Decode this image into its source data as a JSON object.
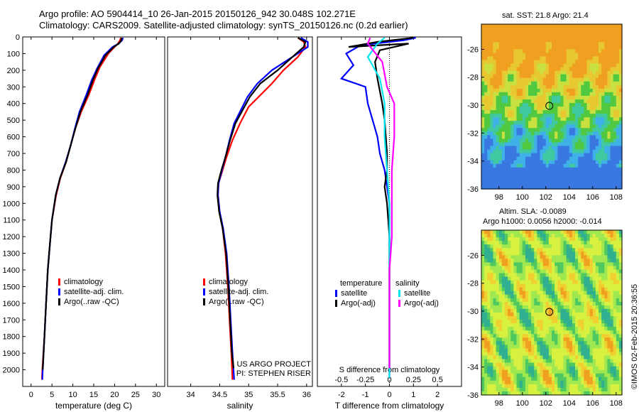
{
  "header": {
    "line1": "Argo profile: AO 5904414_10 26-Jan-2015 20150126_942 30.048S 102.271E",
    "line2": "Climatology: CARS2009. Satellite-adjusted climatology: synTS_20150126.nc (0.2d earlier)"
  },
  "map_sst": {
    "title": "sat. SST: 21.8 Argo: 21.4"
  },
  "map_sla": {
    "title1": "Altim. SLA: -0.0089",
    "title2": "Argo h1000: 0.0056 h2000: -0.014"
  },
  "credit": "©IMOS 02-Feb-2015 20:36:55",
  "colors": {
    "climatology": "#ff0000",
    "satellite": "#0000ff",
    "argo": "#000000",
    "cyan": "#00e5ee",
    "magenta": "#ff00ff"
  },
  "chart_data": [
    {
      "type": "line",
      "xlabel": "temperature (deg C)",
      "ylabel": "",
      "xlim": [
        -2,
        32
      ],
      "ylim": [
        2100,
        0
      ],
      "xticks": [
        "0",
        "5",
        "10",
        "15",
        "20",
        "25",
        "30"
      ],
      "yticks": [
        "0",
        "100",
        "200",
        "300",
        "400",
        "500",
        "600",
        "700",
        "800",
        "900",
        "1000",
        "1100",
        "1200",
        "1300",
        "1400",
        "1500",
        "1600",
        "1700",
        "1800",
        "1900",
        "2000"
      ],
      "legend": [
        "climatology",
        "satellite-adj. clim.",
        "Argo(..raw -QC)"
      ],
      "series": [
        {
          "name": "climatology",
          "color": "#ff0000",
          "points": [
            [
              21.5,
              5
            ],
            [
              21.3,
              20
            ],
            [
              20.8,
              40
            ],
            [
              20,
              60
            ],
            [
              18.5,
              100
            ],
            [
              16.5,
              180
            ],
            [
              15.3,
              250
            ],
            [
              13.8,
              350
            ],
            [
              12,
              450
            ],
            [
              10.6,
              550
            ],
            [
              9.5,
              650
            ],
            [
              8.4,
              750
            ],
            [
              7,
              850
            ],
            [
              6,
              950
            ],
            [
              5,
              1100
            ],
            [
              4.5,
              1250
            ],
            [
              4,
              1400
            ],
            [
              3.6,
              1600
            ],
            [
              3.2,
              1800
            ],
            [
              2.7,
              2000
            ],
            [
              2.6,
              2060
            ]
          ]
        },
        {
          "name": "satellite-adj. clim.",
          "color": "#0000ff",
          "points": [
            [
              22,
              5
            ],
            [
              21.8,
              20
            ],
            [
              21,
              40
            ],
            [
              19.5,
              60
            ],
            [
              17.5,
              110
            ],
            [
              15.8,
              190
            ],
            [
              14.5,
              260
            ],
            [
              13.2,
              350
            ],
            [
              11.6,
              450
            ],
            [
              10.5,
              550
            ],
            [
              9.5,
              650
            ],
            [
              8.3,
              750
            ],
            [
              6.9,
              850
            ],
            [
              5.9,
              950
            ],
            [
              5,
              1100
            ],
            [
              4.5,
              1250
            ],
            [
              4,
              1400
            ],
            [
              3.6,
              1600
            ],
            [
              3.2,
              1800
            ],
            [
              2.8,
              2000
            ],
            [
              2.7,
              2060
            ]
          ]
        },
        {
          "name": "Argo(..raw -QC)",
          "color": "#000000",
          "points": [
            [
              21.7,
              5
            ],
            [
              21.6,
              20
            ],
            [
              21,
              40
            ],
            [
              19.8,
              60
            ],
            [
              17.8,
              110
            ],
            [
              16,
              190
            ],
            [
              14.8,
              260
            ],
            [
              13.5,
              350
            ],
            [
              11.8,
              450
            ],
            [
              10.6,
              550
            ],
            [
              9.5,
              650
            ],
            [
              8.4,
              750
            ],
            [
              6.9,
              850
            ],
            [
              5.9,
              950
            ],
            [
              5,
              1100
            ],
            [
              4.5,
              1250
            ],
            [
              4,
              1400
            ],
            [
              3.6,
              1600
            ],
            [
              3.2,
              1800
            ],
            [
              2.8,
              2000
            ]
          ]
        }
      ]
    },
    {
      "type": "line",
      "xlabel": "salinity",
      "xlim": [
        33.6,
        36.1
      ],
      "ylim": [
        2100,
        0
      ],
      "xticks": [
        "34",
        "34.5",
        "35",
        "35.5",
        "36"
      ],
      "legend": [
        "climatology",
        "satellite-adj. clim.",
        "Argo(..raw -QC)"
      ],
      "annotation": [
        "US ARGO PROJECT",
        "PI: STEPHEN RISER"
      ],
      "series": [
        {
          "name": "climatology",
          "color": "#ff0000",
          "points": [
            [
              35.85,
              5
            ],
            [
              35.95,
              30
            ],
            [
              35.98,
              60
            ],
            [
              35.85,
              120
            ],
            [
              35.6,
              200
            ],
            [
              35.4,
              280
            ],
            [
              35.2,
              350
            ],
            [
              35.0,
              420
            ],
            [
              34.85,
              520
            ],
            [
              34.72,
              620
            ],
            [
              34.62,
              720
            ],
            [
              34.55,
              800
            ],
            [
              34.48,
              880
            ],
            [
              34.47,
              950
            ],
            [
              34.5,
              1050
            ],
            [
              34.55,
              1150
            ],
            [
              34.6,
              1300
            ],
            [
              34.64,
              1500
            ],
            [
              34.67,
              1700
            ],
            [
              34.7,
              1900
            ],
            [
              34.72,
              2060
            ]
          ]
        },
        {
          "name": "satellite-adj. clim.",
          "color": "#0000ff",
          "points": [
            [
              35.9,
              5
            ],
            [
              36.02,
              30
            ],
            [
              36.02,
              60
            ],
            [
              35.8,
              110
            ],
            [
              35.4,
              200
            ],
            [
              35.15,
              280
            ],
            [
              34.98,
              360
            ],
            [
              34.85,
              450
            ],
            [
              34.75,
              520
            ],
            [
              34.67,
              620
            ],
            [
              34.6,
              720
            ],
            [
              34.54,
              800
            ],
            [
              34.48,
              880
            ],
            [
              34.47,
              950
            ],
            [
              34.5,
              1050
            ],
            [
              34.56,
              1150
            ],
            [
              34.62,
              1300
            ],
            [
              34.66,
              1500
            ],
            [
              34.69,
              1700
            ],
            [
              34.72,
              1900
            ],
            [
              34.75,
              2060
            ]
          ]
        },
        {
          "name": "Argo(..raw -QC)",
          "color": "#000000",
          "points": [
            [
              35.85,
              5
            ],
            [
              35.98,
              30
            ],
            [
              35.95,
              60
            ],
            [
              35.82,
              100
            ],
            [
              35.5,
              200
            ],
            [
              35.2,
              280
            ],
            [
              35.02,
              360
            ],
            [
              34.88,
              450
            ],
            [
              34.77,
              520
            ],
            [
              34.68,
              620
            ],
            [
              34.6,
              720
            ],
            [
              34.53,
              800
            ],
            [
              34.47,
              880
            ],
            [
              34.46,
              950
            ],
            [
              34.49,
              1050
            ],
            [
              34.55,
              1150
            ],
            [
              34.61,
              1300
            ],
            [
              34.65,
              1500
            ],
            [
              34.68,
              1700
            ],
            [
              34.71,
              1900
            ],
            [
              34.74,
              1990
            ]
          ]
        }
      ]
    },
    {
      "type": "line",
      "xlabel": "T difference from climatology",
      "top_label": "S difference from climatology",
      "xlim": [
        -3,
        3
      ],
      "ylim": [
        2100,
        0
      ],
      "xticks": [
        "-2",
        "-1",
        "0",
        "1",
        "2"
      ],
      "top_ticks": [
        "-0.5",
        "-0.25",
        "0",
        "0.25",
        "0.5"
      ],
      "legend_titles": [
        "temperature",
        "salinity"
      ],
      "legend": [
        "satellite",
        "Argo(-adj)",
        "satellite",
        "Argo(-adj)"
      ],
      "series": [
        {
          "name": "satellite",
          "color": "#0000ff",
          "points": [
            [
              1.1,
              5
            ],
            [
              0.6,
              20
            ],
            [
              -1.2,
              50
            ],
            [
              -1.8,
              100
            ],
            [
              -1.5,
              170
            ],
            [
              -2.0,
              250
            ],
            [
              -1.0,
              300
            ],
            [
              -0.9,
              400
            ],
            [
              -0.7,
              500
            ],
            [
              -0.5,
              600
            ],
            [
              -0.4,
              700
            ],
            [
              -0.2,
              800
            ],
            [
              -0.1,
              900
            ],
            [
              0,
              1000
            ],
            [
              0,
              1200
            ],
            [
              0,
              1500
            ],
            [
              0,
              1800
            ],
            [
              0,
              2050
            ]
          ]
        },
        {
          "name": "Argo(-adj)",
          "color": "#000000",
          "points": [
            [
              1.0,
              5
            ],
            [
              -0.5,
              30
            ],
            [
              -1.7,
              60
            ],
            [
              0.8,
              40
            ],
            [
              -0.4,
              80
            ],
            [
              -0.6,
              150
            ],
            [
              -0.5,
              250
            ],
            [
              -0.3,
              400
            ],
            [
              -0.2,
              500
            ],
            [
              -0.1,
              700
            ],
            [
              -0.1,
              800
            ],
            [
              -0.2,
              900
            ],
            [
              -0.1,
              1000
            ],
            [
              0,
              1200
            ],
            [
              0,
              1500
            ],
            [
              0,
              1800
            ],
            [
              0,
              1990
            ]
          ]
        },
        {
          "name": "satellite",
          "color": "#00e5ee",
          "points": [
            [
              -0.2,
              5
            ],
            [
              -0.5,
              40
            ],
            [
              -0.9,
              120
            ],
            [
              -0.4,
              250
            ],
            [
              -0.2,
              400
            ],
            [
              -0.2,
              600
            ],
            [
              -0.1,
              800
            ],
            [
              0,
              1000
            ],
            [
              0,
              1200
            ],
            [
              0,
              1500
            ],
            [
              0,
              1800
            ],
            [
              0,
              2050
            ]
          ]
        },
        {
          "name": "Argo(-adj)",
          "color": "#ff00ff",
          "points": [
            [
              -0.8,
              5
            ],
            [
              -0.9,
              40
            ],
            [
              -0.3,
              150
            ],
            [
              -0.1,
              300
            ],
            [
              0.2,
              400
            ],
            [
              0.2,
              600
            ],
            [
              0.1,
              800
            ],
            [
              0.1,
              1000
            ],
            [
              0.1,
              1200
            ],
            [
              0,
              1400
            ],
            [
              0,
              1600
            ],
            [
              0,
              1800
            ],
            [
              0,
              1990
            ]
          ]
        }
      ]
    },
    {
      "type": "heatmap",
      "title": "sat. SST: 21.8 Argo: 21.4",
      "xticks": [
        "98",
        "100",
        "102",
        "104",
        "106",
        "108"
      ],
      "yticks": [
        "-26",
        "-28",
        "-30",
        "-32",
        "-34",
        "-36"
      ],
      "xlim": [
        96.5,
        108.5
      ],
      "ylim": [
        -36,
        -24.2
      ],
      "marker": [
        102.3,
        -30.05
      ]
    },
    {
      "type": "heatmap",
      "title": "Altim. SLA: -0.0089",
      "subtitle": "Argo h1000: 0.0056 h2000: -0.014",
      "xticks": [
        "98",
        "100",
        "102",
        "104",
        "106",
        "108"
      ],
      "yticks": [
        "-26",
        "-28",
        "-30",
        "-32",
        "-34",
        "-36"
      ],
      "xlim": [
        96.5,
        108.5
      ],
      "ylim": [
        -36,
        -24.2
      ],
      "marker": [
        102.3,
        -30.05
      ]
    }
  ]
}
